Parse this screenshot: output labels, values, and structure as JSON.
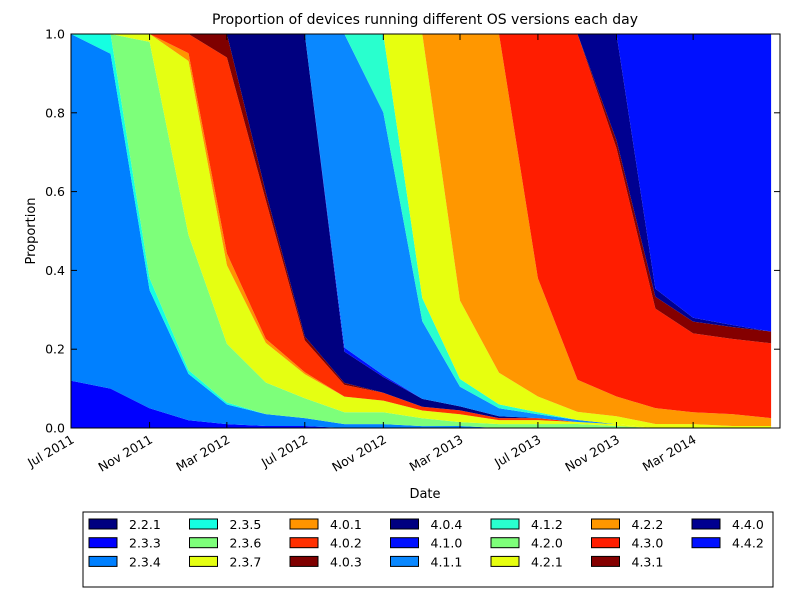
{
  "chart_data": {
    "type": "area",
    "stacked": true,
    "normalized": true,
    "title": "Proportion of devices running different OS versions each day",
    "xlabel": "Date",
    "ylabel": "Proportion",
    "xlim": [
      "2011-07-01",
      "2014-07-15"
    ],
    "ylim": [
      0,
      1
    ],
    "x_ticks": [
      "2011-07-01",
      "2011-11-01",
      "2012-03-01",
      "2012-07-01",
      "2012-11-01",
      "2013-03-01",
      "2013-07-01",
      "2013-11-01",
      "2014-03-01"
    ],
    "x_tick_labels": [
      "Jul 2011",
      "Nov 2011",
      "Mar 2012",
      "Jul 2012",
      "Nov 2012",
      "Mar 2013",
      "Jul 2013",
      "Nov 2013",
      "Mar 2014"
    ],
    "y_ticks": [
      0.0,
      0.2,
      0.4,
      0.6,
      0.8,
      1.0
    ],
    "y_tick_labels": [
      "0.0",
      "0.2",
      "0.4",
      "0.6",
      "0.8",
      "1.0"
    ],
    "grid": false,
    "legend_position": "bottom",
    "legend_columns": 7,
    "x": [
      "2011-07-01",
      "2011-09-01",
      "2011-11-01",
      "2012-01-01",
      "2012-03-01",
      "2012-05-01",
      "2012-07-01",
      "2012-09-01",
      "2012-11-01",
      "2013-01-01",
      "2013-03-01",
      "2013-05-01",
      "2013-07-01",
      "2013-09-01",
      "2013-11-01",
      "2014-01-01",
      "2014-03-01",
      "2014-05-01",
      "2014-07-01"
    ],
    "series": [
      {
        "name": "2.2.1",
        "color": "#000080",
        "values": [
          0.0,
          0,
          0,
          0,
          0,
          0,
          0,
          0,
          0,
          0,
          0,
          0,
          0,
          0,
          0,
          0,
          0,
          0,
          0
        ]
      },
      {
        "name": "2.3.3",
        "color": "#0000ff",
        "values": [
          0.12,
          0.1,
          0.05,
          0.02,
          0.01,
          0.005,
          0.005,
          0,
          0,
          0,
          0,
          0,
          0,
          0,
          0,
          0,
          0,
          0,
          0
        ]
      },
      {
        "name": "2.3.4",
        "color": "#0080ff",
        "values": [
          0.88,
          0.85,
          0.3,
          0.12,
          0.05,
          0.03,
          0.02,
          0.01,
          0.01,
          0.005,
          0.005,
          0,
          0,
          0,
          0,
          0,
          0,
          0,
          0
        ]
      },
      {
        "name": "2.3.5",
        "color": "#15ffe1",
        "values": [
          0.0,
          0.05,
          0.03,
          0.01,
          0.005,
          0,
          0,
          0,
          0,
          0,
          0,
          0,
          0,
          0,
          0,
          0,
          0,
          0,
          0
        ]
      },
      {
        "name": "2.3.6",
        "color": "#7dff7a",
        "values": [
          0.0,
          0.0,
          0.6,
          0.35,
          0.15,
          0.08,
          0.05,
          0.03,
          0.03,
          0.02,
          0.01,
          0.01,
          0.01,
          0.01,
          0.005,
          0,
          0,
          0,
          0
        ]
      },
      {
        "name": "2.3.7",
        "color": "#e5ff12",
        "values": [
          0.0,
          0.0,
          0.02,
          0.45,
          0.2,
          0.1,
          0.06,
          0.04,
          0.03,
          0.02,
          0.02,
          0.01,
          0.01,
          0.005,
          0.005,
          0,
          0,
          0,
          0
        ]
      },
      {
        "name": "4.0.1",
        "color": "#ff9400",
        "values": [
          0,
          0,
          0,
          0.02,
          0.03,
          0.01,
          0.005,
          0,
          0,
          0,
          0,
          0,
          0,
          0,
          0,
          0,
          0,
          0,
          0
        ]
      },
      {
        "name": "4.0.2",
        "color": "#ff3000",
        "values": [
          0,
          0,
          0,
          0.05,
          0.5,
          0.35,
          0.08,
          0.03,
          0.02,
          0.01,
          0.01,
          0.005,
          0.005,
          0,
          0,
          0,
          0,
          0,
          0
        ]
      },
      {
        "name": "4.0.3",
        "color": "#7f0000",
        "values": [
          0,
          0,
          0,
          0,
          0.06,
          0.02,
          0.01,
          0.005,
          0,
          0,
          0,
          0,
          0,
          0,
          0,
          0,
          0,
          0,
          0
        ]
      },
      {
        "name": "4.0.4",
        "color": "#000080",
        "values": [
          0,
          0,
          0,
          0,
          0,
          0.4,
          0.76,
          0.08,
          0.04,
          0.02,
          0.01,
          0.005,
          0,
          0,
          0,
          0,
          0,
          0,
          0
        ]
      },
      {
        "name": "4.1.0",
        "color": "#0010ff",
        "values": [
          0,
          0,
          0,
          0,
          0,
          0,
          0,
          0.01,
          0.005,
          0,
          0,
          0,
          0,
          0,
          0,
          0,
          0,
          0,
          0
        ]
      },
      {
        "name": "4.1.1",
        "color": "#0a88ff",
        "values": [
          0,
          0,
          0,
          0,
          0,
          0,
          0,
          0.8,
          0.67,
          0.2,
          0.05,
          0.02,
          0.01,
          0.005,
          0,
          0,
          0,
          0,
          0
        ]
      },
      {
        "name": "4.1.2",
        "color": "#29ffce",
        "values": [
          0,
          0,
          0,
          0,
          0,
          0,
          0,
          0,
          0.2,
          0.06,
          0.02,
          0.01,
          0.005,
          0,
          0,
          0,
          0,
          0,
          0
        ]
      },
      {
        "name": "4.2.0",
        "color": "#7eff7a",
        "values": [
          0,
          0,
          0,
          0,
          0,
          0,
          0,
          0,
          0,
          0,
          0,
          0,
          0,
          0,
          0,
          0,
          0,
          0,
          0
        ]
      },
      {
        "name": "4.2.1",
        "color": "#e7ff0f",
        "values": [
          0,
          0,
          0,
          0,
          0,
          0,
          0,
          0,
          0,
          0.68,
          0.2,
          0.08,
          0.04,
          0.02,
          0.02,
          0.01,
          0.01,
          0.005,
          0.005
        ]
      },
      {
        "name": "4.2.2",
        "color": "#ff9700",
        "values": [
          0,
          0,
          0,
          0,
          0,
          0,
          0,
          0,
          0,
          0,
          0.68,
          0.86,
          0.3,
          0.08,
          0.05,
          0.04,
          0.03,
          0.03,
          0.02
        ]
      },
      {
        "name": "4.3.0",
        "color": "#ff1d00",
        "values": [
          0,
          0,
          0,
          0,
          0,
          0,
          0,
          0,
          0,
          0,
          0,
          0,
          0.62,
          0.86,
          0.63,
          0.25,
          0.2,
          0.19,
          0.19
        ]
      },
      {
        "name": "4.3.1",
        "color": "#840000",
        "values": [
          0,
          0,
          0,
          0,
          0,
          0,
          0,
          0,
          0,
          0,
          0,
          0,
          0,
          0,
          0.02,
          0.03,
          0.03,
          0.03,
          0.03
        ]
      },
      {
        "name": "4.4.0",
        "color": "#000090",
        "values": [
          0,
          0,
          0,
          0,
          0,
          0,
          0,
          0,
          0,
          0,
          0,
          0,
          0,
          0,
          0.27,
          0.02,
          0.01,
          0.005,
          0
        ]
      },
      {
        "name": "4.4.2",
        "color": "#0010ff",
        "values": [
          0,
          0,
          0,
          0,
          0,
          0,
          0,
          0,
          0,
          0,
          0,
          0,
          0,
          0,
          0,
          0.64,
          0.72,
          0.735,
          0.755
        ]
      }
    ]
  }
}
